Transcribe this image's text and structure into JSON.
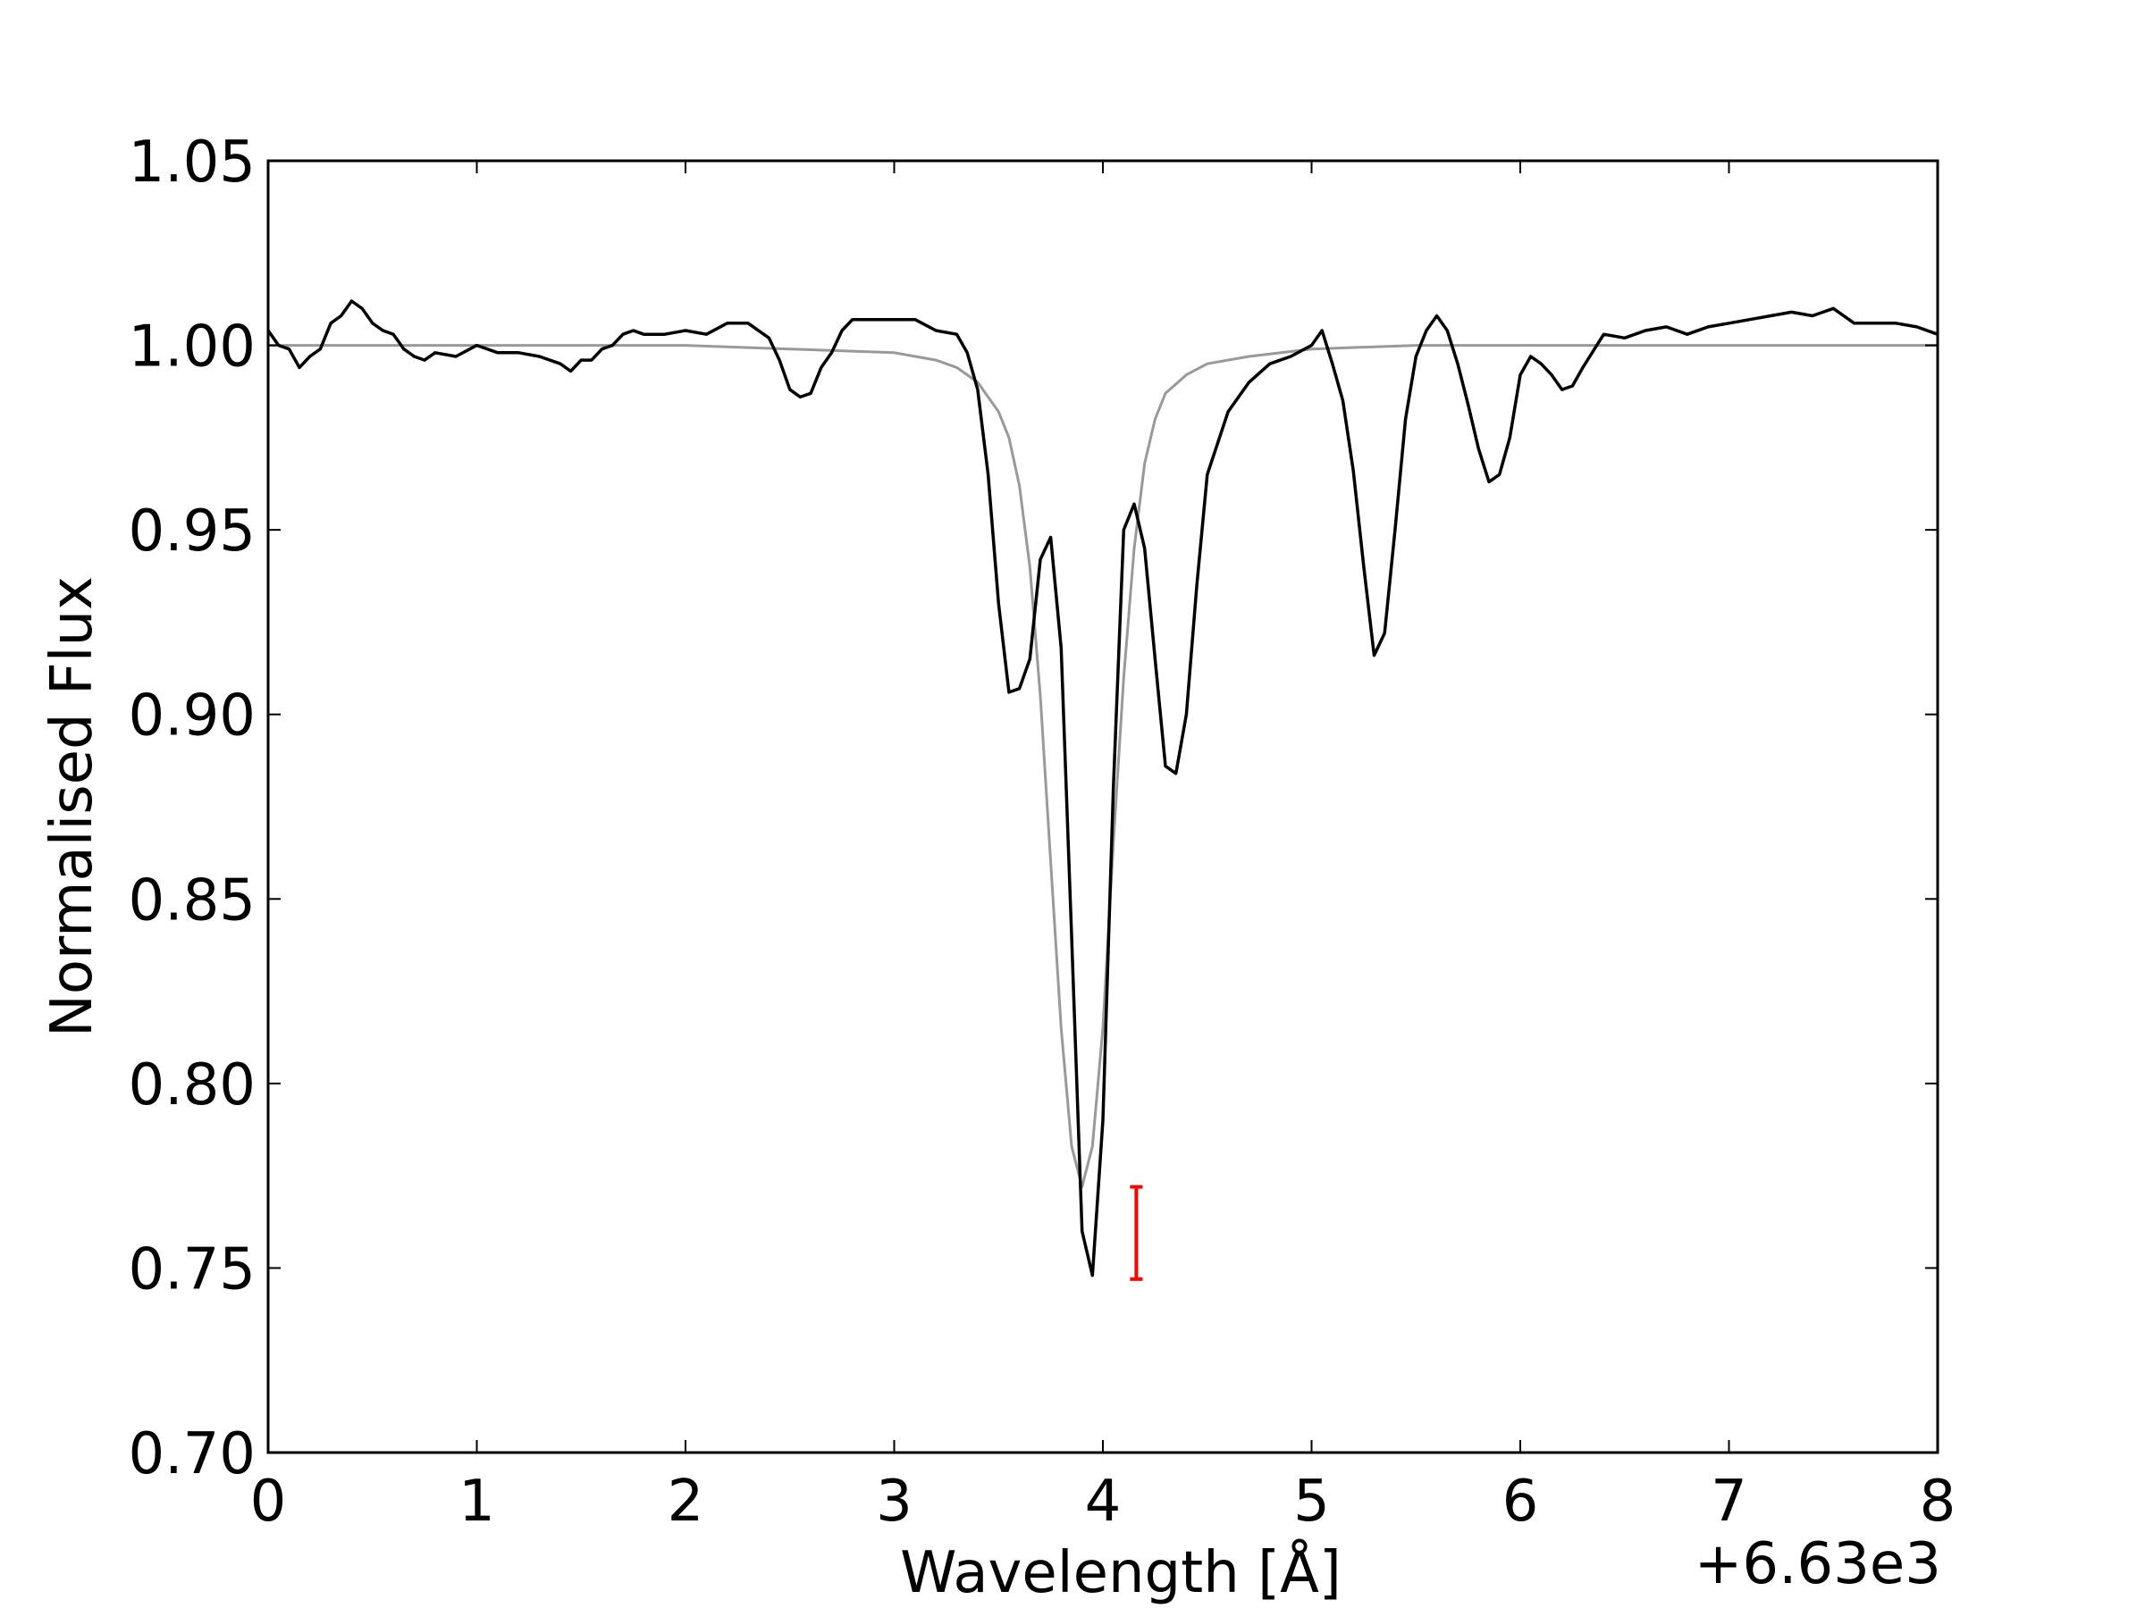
{
  "chart_data": {
    "type": "line",
    "xlabel": "Wavelength [Å]",
    "ylabel": "Normalised Flux",
    "x_offset_label": "+6.63e3",
    "xlim": [
      0,
      8
    ],
    "ylim": [
      0.7,
      1.05
    ],
    "x_ticks": [
      0,
      1,
      2,
      3,
      4,
      5,
      6,
      7,
      8
    ],
    "x_tick_labels": [
      "0",
      "1",
      "2",
      "3",
      "4",
      "5",
      "6",
      "7",
      "8"
    ],
    "y_ticks": [
      0.7,
      0.75,
      0.8,
      0.85,
      0.9,
      0.95,
      1.0,
      1.05
    ],
    "y_tick_labels": [
      "0.70",
      "0.75",
      "0.80",
      "0.85",
      "0.90",
      "0.95",
      "1.00",
      "1.05"
    ],
    "grid": false,
    "series": [
      {
        "color": "#000000",
        "x": [
          0.0,
          0.05,
          0.1,
          0.15,
          0.2,
          0.25,
          0.3,
          0.35,
          0.4,
          0.45,
          0.5,
          0.55,
          0.6,
          0.65,
          0.7,
          0.75,
          0.8,
          0.9,
          1.0,
          1.1,
          1.2,
          1.3,
          1.4,
          1.45,
          1.5,
          1.55,
          1.6,
          1.65,
          1.7,
          1.75,
          1.8,
          1.9,
          2.0,
          2.1,
          2.2,
          2.3,
          2.4,
          2.45,
          2.5,
          2.55,
          2.6,
          2.65,
          2.7,
          2.75,
          2.8,
          2.9,
          3.0,
          3.1,
          3.2,
          3.3,
          3.35,
          3.4,
          3.45,
          3.5,
          3.55,
          3.6,
          3.65,
          3.7,
          3.75,
          3.8,
          3.85,
          3.9,
          3.95,
          4.0,
          4.05,
          4.1,
          4.15,
          4.2,
          4.25,
          4.3,
          4.35,
          4.4,
          4.45,
          4.5,
          4.6,
          4.7,
          4.8,
          4.9,
          5.0,
          5.05,
          5.1,
          5.15,
          5.2,
          5.25,
          5.3,
          5.35,
          5.4,
          5.45,
          5.5,
          5.55,
          5.6,
          5.65,
          5.7,
          5.75,
          5.8,
          5.85,
          5.9,
          5.95,
          6.0,
          6.05,
          6.1,
          6.15,
          6.2,
          6.25,
          6.3,
          6.4,
          6.5,
          6.6,
          6.7,
          6.8,
          6.9,
          7.0,
          7.1,
          7.2,
          7.3,
          7.4,
          7.5,
          7.6,
          7.7,
          7.8,
          7.9,
          8.0
        ],
        "y": [
          1.004,
          1.0,
          0.999,
          0.994,
          0.997,
          0.999,
          1.006,
          1.008,
          1.012,
          1.01,
          1.006,
          1.004,
          1.003,
          0.999,
          0.997,
          0.996,
          0.998,
          0.997,
          1.0,
          0.998,
          0.998,
          0.997,
          0.995,
          0.993,
          0.996,
          0.996,
          0.999,
          1.0,
          1.003,
          1.004,
          1.003,
          1.003,
          1.004,
          1.003,
          1.006,
          1.006,
          1.002,
          0.996,
          0.988,
          0.986,
          0.987,
          0.994,
          0.998,
          1.004,
          1.007,
          1.007,
          1.007,
          1.007,
          1.004,
          1.003,
          0.998,
          0.988,
          0.965,
          0.93,
          0.906,
          0.907,
          0.915,
          0.942,
          0.948,
          0.918,
          0.84,
          0.76,
          0.748,
          0.79,
          0.88,
          0.95,
          0.957,
          0.945,
          0.915,
          0.886,
          0.884,
          0.9,
          0.935,
          0.965,
          0.982,
          0.99,
          0.995,
          0.997,
          1.0,
          1.004,
          0.995,
          0.985,
          0.966,
          0.94,
          0.916,
          0.922,
          0.95,
          0.98,
          0.997,
          1.004,
          1.008,
          1.004,
          0.995,
          0.984,
          0.972,
          0.963,
          0.965,
          0.975,
          0.992,
          0.997,
          0.995,
          0.992,
          0.988,
          0.989,
          0.994,
          1.003,
          1.002,
          1.004,
          1.005,
          1.003,
          1.005,
          1.006,
          1.007,
          1.008,
          1.009,
          1.008,
          1.01,
          1.006,
          1.006,
          1.006,
          1.005,
          1.003
        ]
      },
      {
        "color": "#999999",
        "x": [
          0.0,
          1.0,
          2.0,
          2.5,
          3.0,
          3.2,
          3.3,
          3.4,
          3.5,
          3.55,
          3.6,
          3.65,
          3.7,
          3.75,
          3.8,
          3.85,
          3.9,
          3.95,
          4.0,
          4.05,
          4.1,
          4.15,
          4.2,
          4.25,
          4.3,
          4.4,
          4.5,
          4.7,
          5.0,
          5.5,
          6.0,
          7.0,
          8.0
        ],
        "y": [
          1.0,
          1.0,
          1.0,
          0.999,
          0.998,
          0.996,
          0.994,
          0.99,
          0.982,
          0.975,
          0.962,
          0.94,
          0.905,
          0.86,
          0.815,
          0.783,
          0.772,
          0.783,
          0.815,
          0.865,
          0.91,
          0.945,
          0.968,
          0.98,
          0.987,
          0.992,
          0.995,
          0.997,
          0.999,
          1.0,
          1.0,
          1.0,
          1.0
        ]
      }
    ],
    "error_bar": {
      "x": 4.16,
      "y_low": 0.747,
      "y_high": 0.772,
      "color": "#ff0000"
    }
  }
}
